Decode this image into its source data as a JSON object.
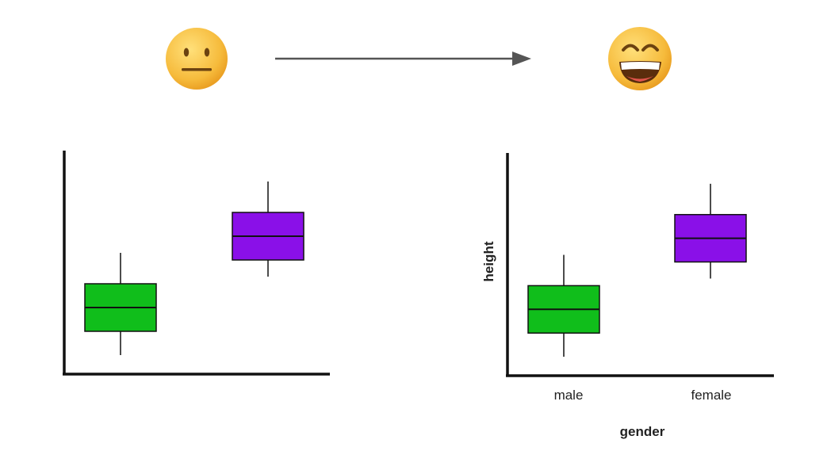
{
  "emojis": {
    "before": {
      "icon": "neutral-face-icon"
    },
    "after": {
      "icon": "grinning-face-icon"
    }
  },
  "colors": {
    "green": "#10be1b",
    "purple": "#8a10e8",
    "stroke": "#111111",
    "arrow": "#555555"
  },
  "chart_data": [
    {
      "type": "box",
      "title": "",
      "xlabel": "",
      "ylabel": "",
      "categories": [
        "",
        ""
      ],
      "series": [
        {
          "color": "#10be1b",
          "whisker_low": 1.0,
          "q1": 2.0,
          "median": 3.0,
          "q3": 4.0,
          "whisker_high": 5.3
        },
        {
          "color": "#8a10e8",
          "whisker_low": 4.3,
          "q1": 5.0,
          "median": 6.0,
          "q3": 7.0,
          "whisker_high": 8.3
        }
      ],
      "ylim": [
        0.2,
        9.6
      ],
      "grid": false
    },
    {
      "type": "box",
      "title": "",
      "xlabel": "gender",
      "ylabel": "height",
      "categories": [
        "male",
        "female"
      ],
      "series": [
        {
          "color": "#10be1b",
          "whisker_low": 1.0,
          "q1": 2.0,
          "median": 3.0,
          "q3": 4.0,
          "whisker_high": 5.3
        },
        {
          "color": "#8a10e8",
          "whisker_low": 4.3,
          "q1": 5.0,
          "median": 6.0,
          "q3": 7.0,
          "whisker_high": 8.3
        }
      ],
      "ylim": [
        0.2,
        9.6
      ],
      "grid": false
    }
  ]
}
